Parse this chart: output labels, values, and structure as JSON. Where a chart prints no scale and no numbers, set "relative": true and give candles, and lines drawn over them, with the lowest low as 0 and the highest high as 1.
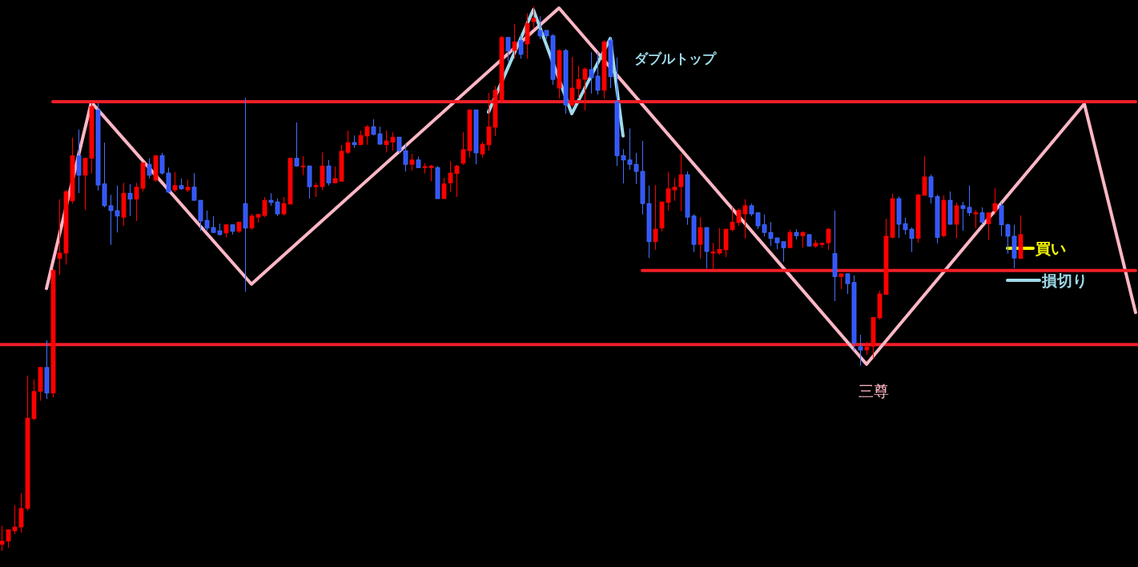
{
  "chart_data": {
    "type": "candlestick",
    "relative": true,
    "tick_labels": false,
    "categories": [
      null,
      null,
      null,
      null,
      null,
      null,
      null,
      null,
      null,
      null,
      null,
      null,
      null,
      null,
      null,
      null,
      null,
      null,
      null,
      null,
      null,
      null,
      null,
      null,
      null,
      null,
      null,
      null,
      null,
      null,
      null,
      null,
      null,
      null,
      null,
      null,
      null,
      null,
      null,
      null,
      null,
      null,
      null,
      null,
      null,
      null,
      null,
      null,
      null,
      null,
      null,
      null,
      null,
      null,
      null,
      null,
      null,
      null,
      null,
      null,
      null,
      null,
      null,
      null,
      null,
      null,
      null,
      null,
      null,
      null,
      null,
      null,
      null,
      null,
      null,
      null,
      null,
      null,
      null,
      null,
      null,
      null,
      null,
      null,
      null,
      null,
      null,
      null,
      null,
      null,
      null,
      null,
      null,
      null,
      null,
      null,
      null,
      null,
      null,
      null,
      null,
      null,
      null,
      null,
      null,
      null,
      null,
      null,
      null,
      null,
      null,
      null,
      null,
      null,
      null,
      null,
      null,
      null,
      null,
      null,
      null,
      null,
      null,
      null,
      null,
      null,
      null,
      null,
      null,
      null,
      null,
      null,
      null,
      null,
      null,
      null,
      null,
      null,
      null,
      null,
      null,
      null,
      null,
      null,
      null,
      null,
      null,
      null,
      null,
      null,
      null,
      null,
      null,
      null,
      null,
      null,
      null,
      null,
      null,
      null,
      null,
      null,
      null,
      null,
      null,
      null,
      null,
      null,
      null,
      null,
      null,
      null,
      null,
      null,
      null,
      null,
      null,
      null
    ],
    "ohlc": [
      [
        0.012,
        0.046,
        0,
        0.018
      ],
      [
        0.018,
        0.04,
        0.006,
        0.039
      ],
      [
        0.037,
        0.084,
        0.031,
        0.044
      ],
      [
        0.044,
        0.106,
        0.034,
        0.078
      ],
      [
        0.078,
        0.322,
        0.074,
        0.244
      ],
      [
        0.243,
        0.315,
        0.24,
        0.293
      ],
      [
        0.293,
        0.338,
        0.276,
        0.337
      ],
      [
        0.337,
        0.387,
        0.279,
        0.29
      ],
      [
        0.29,
        0.518,
        0.282,
        0.515
      ],
      [
        0.537,
        0.646,
        0.507,
        0.547
      ],
      [
        0.547,
        0.663,
        0.526,
        0.66
      ],
      [
        0.643,
        0.759,
        0.638,
        0.726
      ],
      [
        0.726,
        0.774,
        0.657,
        0.69
      ],
      [
        0.69,
        0.722,
        0.626,
        0.721
      ],
      [
        0.721,
        0.822,
        0.693,
        0.816
      ],
      [
        0.81,
        0.822,
        0.662,
        0.672
      ],
      [
        0.674,
        0.75,
        0.631,
        0.634
      ],
      [
        0.634,
        0.654,
        0.562,
        0.625
      ],
      [
        0.625,
        0.671,
        0.585,
        0.615
      ],
      [
        0.613,
        0.676,
        0.597,
        0.657
      ],
      [
        0.657,
        0.674,
        0.615,
        0.646
      ],
      [
        0.646,
        0.676,
        0.606,
        0.668
      ],
      [
        0.666,
        0.713,
        0.66,
        0.713
      ],
      [
        0.71,
        0.721,
        0.684,
        0.69
      ],
      [
        0.681,
        0.726,
        0.678,
        0.726
      ],
      [
        0.726,
        0.731,
        0.691,
        0.694
      ],
      [
        0.694,
        0.704,
        0.657,
        0.659
      ],
      [
        0.663,
        0.696,
        0.659,
        0.671
      ],
      [
        0.671,
        0.684,
        0.663,
        0.665
      ],
      [
        0.663,
        0.682,
        0.659,
        0.668
      ],
      [
        0.668,
        0.694,
        0.643,
        0.644
      ],
      [
        0.644,
        0.644,
        0.588,
        0.606
      ],
      [
        0.607,
        0.625,
        0.588,
        0.593
      ],
      [
        0.594,
        0.615,
        0.584,
        0.585
      ],
      [
        0.588,
        0.601,
        0.579,
        0.581
      ],
      [
        0.584,
        0.599,
        0.576,
        0.599
      ],
      [
        0.599,
        0.599,
        0.581,
        0.587
      ],
      [
        0.587,
        0.604,
        0.584,
        0.604
      ],
      [
        0.638,
        0.832,
        0.476,
        0.593
      ],
      [
        0.593,
        0.619,
        0.59,
        0.615
      ],
      [
        0.613,
        0.619,
        0.603,
        0.618
      ],
      [
        0.616,
        0.65,
        0.613,
        0.644
      ],
      [
        0.644,
        0.657,
        0.634,
        0.64
      ],
      [
        0.641,
        0.647,
        0.615,
        0.619
      ],
      [
        0.619,
        0.65,
        0.616,
        0.638
      ],
      [
        0.637,
        0.721,
        0.637,
        0.721
      ],
      [
        0.721,
        0.787,
        0.706,
        0.707
      ],
      [
        0.706,
        0.725,
        0.69,
        0.707
      ],
      [
        0.707,
        0.707,
        0.647,
        0.669
      ],
      [
        0.669,
        0.676,
        0.65,
        0.671
      ],
      [
        0.669,
        0.732,
        0.663,
        0.707
      ],
      [
        0.707,
        0.718,
        0.671,
        0.676
      ],
      [
        0.676,
        0.706,
        0.676,
        0.684
      ],
      [
        0.679,
        0.746,
        0.679,
        0.734
      ],
      [
        0.732,
        0.772,
        0.729,
        0.75
      ],
      [
        0.75,
        0.763,
        0.74,
        0.746
      ],
      [
        0.746,
        0.772,
        0.746,
        0.763
      ],
      [
        0.762,
        0.782,
        0.746,
        0.779
      ],
      [
        0.779,
        0.793,
        0.763,
        0.765
      ],
      [
        0.766,
        0.779,
        0.746,
        0.747
      ],
      [
        0.746,
        0.772,
        0.732,
        0.753
      ],
      [
        0.751,
        0.769,
        0.735,
        0.76
      ],
      [
        0.76,
        0.76,
        0.731,
        0.735
      ],
      [
        0.735,
        0.747,
        0.697,
        0.71
      ],
      [
        0.71,
        0.729,
        0.699,
        0.718
      ],
      [
        0.718,
        0.724,
        0.703,
        0.704
      ],
      [
        0.704,
        0.712,
        0.693,
        0.706
      ],
      [
        0.704,
        0.709,
        0.679,
        0.707
      ],
      [
        0.704,
        0.707,
        0.647,
        0.647
      ],
      [
        0.647,
        0.685,
        0.647,
        0.674
      ],
      [
        0.676,
        0.716,
        0.659,
        0.694
      ],
      [
        0.693,
        0.709,
        0.65,
        0.707
      ],
      [
        0.712,
        0.769,
        0.709,
        0.737
      ],
      [
        0.735,
        0.81,
        0.722,
        0.81
      ],
      [
        0.81,
        0.81,
        0.71,
        0.731
      ],
      [
        0.729,
        0.751,
        0.722,
        0.747
      ],
      [
        0.746,
        0.841,
        0.735,
        0.779
      ],
      [
        0.778,
        0.854,
        0.762,
        0.846
      ],
      [
        0.828,
        0.946,
        0.824,
        0.943
      ],
      [
        0.943,
        0.943,
        0.899,
        0.918
      ],
      [
        0.919,
        0.968,
        0.904,
        0.935
      ],
      [
        0.938,
        0.947,
        0.904,
        0.912
      ],
      [
        0.931,
        0.987,
        0.904,
        0.969
      ],
      [
        0.972,
        1,
        0.96,
        0.978
      ],
      [
        0.956,
        0.982,
        0.94,
        0.946
      ],
      [
        0.956,
        0.956,
        0.94,
        0.946
      ],
      [
        0.946,
        0.949,
        0.856,
        0.866
      ],
      [
        0.85,
        0.921,
        0.831,
        0.919
      ],
      [
        0.919,
        0.922,
        0.803,
        0.819
      ],
      [
        0.819,
        0.907,
        0.815,
        0.85
      ],
      [
        0.849,
        0.891,
        0.831,
        0.866
      ],
      [
        0.866,
        0.888,
        0.809,
        0.885
      ],
      [
        0.884,
        0.916,
        0.84,
        0.869
      ],
      [
        0.872,
        0.916,
        0.838,
        0.846
      ],
      [
        0.846,
        0.938,
        0.831,
        0.935
      ],
      [
        0.938,
        0.943,
        0.85,
        0.871
      ],
      [
        0.825,
        0.906,
        0.707,
        0.726
      ],
      [
        0.726,
        0.738,
        0.675,
        0.718
      ],
      [
        0.718,
        0.776,
        0.7,
        0.71
      ],
      [
        0.71,
        0.731,
        0.674,
        0.697
      ],
      [
        0.697,
        0.753,
        0.618,
        0.638
      ],
      [
        0.638,
        0.671,
        0.538,
        0.568
      ],
      [
        0.568,
        0.672,
        0.553,
        0.591
      ],
      [
        0.593,
        0.641,
        0.587,
        0.641
      ],
      [
        0.64,
        0.696,
        0.625,
        0.665
      ],
      [
        0.663,
        0.685,
        0.643,
        0.668
      ],
      [
        0.669,
        0.729,
        0.624,
        0.691
      ],
      [
        0.691,
        0.697,
        0.599,
        0.613
      ],
      [
        0.615,
        0.618,
        0.549,
        0.563
      ],
      [
        0.563,
        0.613,
        0.537,
        0.594
      ],
      [
        0.594,
        0.594,
        0.519,
        0.55
      ],
      [
        0.547,
        0.566,
        0.518,
        0.549
      ],
      [
        0.547,
        0.593,
        0.544,
        0.554
      ],
      [
        0.553,
        0.591,
        0.54,
        0.591
      ],
      [
        0.59,
        0.631,
        0.587,
        0.604
      ],
      [
        0.603,
        0.629,
        0.597,
        0.626
      ],
      [
        0.619,
        0.646,
        0.574,
        0.634
      ],
      [
        0.634,
        0.638,
        0.615,
        0.619
      ],
      [
        0.621,
        0.621,
        0.591,
        0.597
      ],
      [
        0.599,
        0.618,
        0.578,
        0.585
      ],
      [
        0.585,
        0.604,
        0.56,
        0.574
      ],
      [
        0.575,
        0.575,
        0.554,
        0.566
      ],
      [
        0.568,
        0.568,
        0.531,
        0.557
      ],
      [
        0.557,
        0.59,
        0.557,
        0.585
      ],
      [
        0.585,
        0.591,
        0.572,
        0.579
      ],
      [
        0.579,
        0.587,
        0.557,
        0.585
      ],
      [
        0.581,
        0.581,
        0.559,
        0.56
      ],
      [
        0.56,
        0.571,
        0.557,
        0.565
      ],
      [
        0.563,
        0.566,
        0.557,
        0.565
      ],
      [
        0.566,
        0.593,
        0.553,
        0.591
      ],
      [
        0.546,
        0.625,
        0.459,
        0.504
      ],
      [
        0.504,
        0.51,
        0.481,
        0.509
      ],
      [
        0.509,
        0.51,
        0.472,
        0.491
      ],
      [
        0.493,
        0.506,
        0.368,
        0.382
      ],
      [
        0.375,
        0.397,
        0.34,
        0.369
      ],
      [
        0.369,
        0.384,
        0.36,
        0.375
      ],
      [
        0.376,
        0.429,
        0.354,
        0.429
      ],
      [
        0.428,
        0.478,
        0.425,
        0.472
      ],
      [
        0.471,
        0.61,
        0.471,
        0.578
      ],
      [
        0.576,
        0.656,
        0.574,
        0.647
      ],
      [
        0.647,
        0.651,
        0.575,
        0.6
      ],
      [
        0.601,
        0.612,
        0.581,
        0.59
      ],
      [
        0.591,
        0.594,
        0.549,
        0.574
      ],
      [
        0.574,
        0.656,
        0.566,
        0.654
      ],
      [
        0.653,
        0.725,
        0.653,
        0.687
      ],
      [
        0.687,
        0.691,
        0.638,
        0.65
      ],
      [
        0.651,
        0.654,
        0.565,
        0.576
      ],
      [
        0.579,
        0.653,
        0.576,
        0.644
      ],
      [
        0.644,
        0.66,
        0.599,
        0.6
      ],
      [
        0.6,
        0.64,
        0.574,
        0.634
      ],
      [
        0.634,
        0.641,
        0.588,
        0.629
      ],
      [
        0.631,
        0.671,
        0.615,
        0.621
      ],
      [
        0.619,
        0.626,
        0.593,
        0.621
      ],
      [
        0.621,
        0.631,
        0.599,
        0.604
      ],
      [
        0.601,
        0.621,
        0.571,
        0.621
      ],
      [
        0.624,
        0.666,
        0.618,
        0.638
      ],
      [
        0.634,
        0.64,
        0.578,
        0.599
      ],
      [
        0.599,
        0.601,
        0.546,
        0.578
      ],
      [
        0.578,
        0.599,
        0.519,
        0.538
      ],
      [
        0.537,
        0.616,
        0.537,
        0.581
      ],
      null,
      null,
      null,
      null,
      null,
      null,
      null,
      null,
      null,
      null,
      null,
      null,
      null,
      null,
      null,
      null,
      null,
      null
    ],
    "colors": [
      "#ff0000",
      "#ff0000",
      "#ff0000",
      "#ff0000",
      "#ff0000",
      "#ff0000",
      "#ff0000",
      "#3355ff",
      "#ff0000",
      "#ff0000",
      "#ff0000",
      "#ff0000",
      "#3355ff",
      "#ff0000",
      "#ff0000",
      "#3355ff",
      "#3355ff",
      "#3355ff",
      "#3355ff",
      "#ff0000",
      "#3355ff",
      "#ff0000",
      "#ff0000",
      "#3355ff",
      "#ff0000",
      "#3355ff",
      "#3355ff",
      "#ff0000",
      "#3355ff",
      "#ff0000",
      "#3355ff",
      "#3355ff",
      "#3355ff",
      "#3355ff",
      "#3355ff",
      "#ff0000",
      "#3355ff",
      "#ff0000",
      "#3355ff",
      "#ff0000",
      "#ff0000",
      "#ff0000",
      "#3355ff",
      "#3355ff",
      "#ff0000",
      "#ff0000",
      "#3355ff",
      "#ff0000",
      "#3355ff",
      "#ff0000",
      "#ff0000",
      "#3355ff",
      "#ff0000",
      "#ff0000",
      "#ff0000",
      "#3355ff",
      "#ff0000",
      "#ff0000",
      "#3355ff",
      "#3355ff",
      "#ff0000",
      "#ff0000",
      "#3355ff",
      "#3355ff",
      "#ff0000",
      "#3355ff",
      "#ff0000",
      "#ff0000",
      "#3355ff",
      "#ff0000",
      "#ff0000",
      "#ff0000",
      "#ff0000",
      "#ff0000",
      "#3355ff",
      "#ff0000",
      "#ff0000",
      "#ff0000",
      "#ff0000",
      "#3355ff",
      "#ff0000",
      "#3355ff",
      "#ff0000",
      "#ff0000",
      "#3355ff",
      "#3355ff",
      "#3355ff",
      "#ff0000",
      "#3355ff",
      "#ff0000",
      "#ff0000",
      "#ff0000",
      "#3355ff",
      "#3355ff",
      "#ff0000",
      "#3355ff",
      "#3355ff",
      "#3355ff",
      "#3355ff",
      "#3355ff",
      "#3355ff",
      "#3355ff",
      "#ff0000",
      "#ff0000",
      "#ff0000",
      "#ff0000",
      "#ff0000",
      "#3355ff",
      "#3355ff",
      "#ff0000",
      "#3355ff",
      "#ff0000",
      "#ff0000",
      "#ff0000",
      "#ff0000",
      "#ff0000",
      "#ff0000",
      "#3355ff",
      "#3355ff",
      "#3355ff",
      "#3355ff",
      "#3355ff",
      "#3355ff",
      "#ff0000",
      "#3355ff",
      "#ff0000",
      "#3355ff",
      "#ff0000",
      "#ff0000",
      "#ff0000",
      "#3355ff",
      "#ff0000",
      "#3355ff",
      "#3355ff",
      "#3355ff",
      "#ff0000",
      "#ff0000",
      "#ff0000",
      "#ff0000",
      "#ff0000",
      "#3355ff",
      "#3355ff",
      "#3355ff",
      "#ff0000",
      "#ff0000",
      "#3355ff",
      "#3355ff",
      "#ff0000",
      "#3355ff",
      "#ff0000",
      "#3355ff",
      "#3355ff",
      "#ff0000",
      "#3355ff",
      "#ff0000",
      "#ff0000",
      "#3355ff",
      "#3355ff",
      "#3355ff",
      "#ff0000",
      null,
      null,
      null,
      null,
      null,
      null,
      null,
      null,
      null,
      null,
      null,
      null,
      null,
      null,
      null,
      null,
      null,
      null
    ],
    "series": [
      {
        "type": "line",
        "color": "#ffb7c5",
        "values": [
          null,
          null,
          null,
          null,
          null,
          null,
          null,
          0.482,
          null,
          null,
          null,
          null,
          null,
          null,
          0.824,
          null,
          null,
          null,
          null,
          null,
          null,
          null,
          null,
          null,
          null,
          null,
          null,
          null,
          null,
          null,
          null,
          null,
          null,
          null,
          null,
          null,
          null,
          null,
          null,
          0.49,
          null,
          null,
          null,
          null,
          null,
          null,
          null,
          null,
          null,
          null,
          null,
          null,
          null,
          null,
          null,
          null,
          null,
          null,
          null,
          null,
          null,
          null,
          null,
          null,
          null,
          null,
          null,
          null,
          null,
          null,
          null,
          null,
          null,
          null,
          null,
          null,
          null,
          null,
          null,
          null,
          null,
          null,
          null,
          null,
          null,
          null,
          null,
          0.997,
          null,
          null,
          null,
          null,
          null,
          null,
          null,
          null,
          null,
          null,
          null,
          null,
          null,
          null,
          null,
          null,
          null,
          null,
          null,
          null,
          null,
          null,
          null,
          null,
          null,
          null,
          null,
          null,
          null,
          null,
          null,
          null,
          null,
          null,
          null,
          null,
          null,
          null,
          null,
          null,
          null,
          null,
          null,
          null,
          null,
          null,
          null,
          0.343,
          null,
          null,
          null,
          null,
          null,
          null,
          null,
          null,
          null,
          null,
          null,
          null,
          null,
          null,
          null,
          null,
          null,
          null,
          null,
          null,
          null,
          null,
          null,
          null,
          null,
          null,
          null,
          null,
          null,
          null,
          null,
          null,
          null,
          0.821,
          null,
          null,
          null,
          null,
          null,
          null,
          null,
          0.438
        ]
      },
      {
        "type": "line",
        "color": "#9fdbea",
        "values": [
          null,
          null,
          null,
          null,
          null,
          null,
          null,
          null,
          null,
          null,
          null,
          null,
          null,
          null,
          null,
          null,
          null,
          null,
          null,
          null,
          null,
          null,
          null,
          null,
          null,
          null,
          null,
          null,
          null,
          null,
          null,
          null,
          null,
          null,
          null,
          null,
          null,
          null,
          null,
          null,
          null,
          null,
          null,
          null,
          null,
          null,
          null,
          null,
          null,
          null,
          null,
          null,
          null,
          null,
          null,
          null,
          null,
          null,
          null,
          null,
          null,
          null,
          null,
          null,
          null,
          null,
          null,
          null,
          null,
          null,
          null,
          null,
          null,
          null,
          null,
          null,
          0.806,
          null,
          null,
          null,
          null,
          null,
          null,
          0.994,
          null,
          null,
          null,
          null,
          null,
          0.803,
          null,
          null,
          null,
          null,
          null,
          0.941,
          null,
          0.762,
          null,
          null,
          null,
          null,
          null,
          null,
          null,
          null,
          null,
          null,
          null,
          null,
          null,
          null,
          null,
          null,
          null,
          null,
          null,
          null,
          null,
          null,
          null,
          null,
          null,
          null,
          null,
          null,
          null,
          null,
          null,
          null,
          null,
          null,
          null,
          null,
          null,
          null,
          null,
          null,
          null,
          null,
          null,
          null,
          null,
          null,
          null,
          null,
          null,
          null,
          null,
          null,
          null,
          null,
          null,
          null,
          null,
          null,
          null,
          null,
          null,
          null,
          null,
          null,
          null,
          null,
          null,
          null,
          null,
          null,
          null,
          null,
          null,
          null,
          null,
          null,
          null,
          null,
          null,
          null
        ]
      },
      {
        "type": "line",
        "color": "#f01e28",
        "values": [
          null,
          null,
          null,
          null,
          null,
          null,
          null,
          null,
          0.825,
          0.825,
          0.825,
          0.825,
          0.825,
          0.825,
          0.825,
          0.825,
          0.825,
          0.825,
          0.825,
          0.825,
          0.825,
          0.825,
          0.825,
          0.825,
          0.825,
          0.825,
          0.825,
          0.825,
          0.825,
          0.825,
          0.825,
          0.825,
          0.825,
          0.825,
          0.825,
          0.825,
          0.825,
          0.825,
          0.825,
          0.825,
          0.825,
          0.825,
          0.825,
          0.825,
          0.825,
          0.825,
          0.825,
          0.825,
          0.825,
          0.825,
          0.825,
          0.825,
          0.825,
          0.825,
          0.825,
          0.825,
          0.825,
          0.825,
          0.825,
          0.825,
          0.825,
          0.825,
          0.825,
          0.825,
          0.825,
          0.825,
          0.825,
          0.825,
          0.825,
          0.825,
          0.825,
          0.825,
          0.825,
          0.825,
          0.825,
          0.825,
          0.825,
          0.825,
          0.825,
          0.825,
          0.825,
          0.825,
          0.825,
          0.825,
          0.825,
          0.825,
          0.825,
          0.825,
          0.825,
          0.825,
          0.825,
          0.825,
          0.825,
          0.825,
          0.825,
          0.825,
          0.825,
          0.825,
          0.825,
          0.825,
          0.825,
          0.825,
          0.825,
          0.825,
          0.825,
          0.825,
          0.825,
          0.825,
          0.825,
          0.825,
          0.825,
          0.825,
          0.825,
          0.825,
          0.825,
          0.825,
          0.825,
          0.825,
          0.825,
          0.825,
          0.825,
          0.825,
          0.825,
          0.825,
          0.825,
          0.825,
          0.825,
          0.825,
          0.825,
          0.825,
          0.825,
          0.825,
          0.825,
          0.825,
          0.825,
          0.825,
          0.825,
          0.825,
          0.825,
          0.825,
          0.825,
          0.825,
          0.825,
          0.825,
          0.825,
          0.825,
          0.825,
          0.825,
          0.825,
          0.825,
          0.825,
          0.825,
          0.825,
          0.825,
          0.825,
          0.825,
          0.825,
          0.825,
          0.825,
          0.825,
          0.825,
          0.825,
          0.825,
          0.825,
          0.825,
          0.825,
          0.825,
          0.825,
          0.825,
          0.825,
          0.825,
          0.825,
          0.825,
          0.825,
          0.825,
          0.825,
          0.825,
          0.825
        ]
      },
      {
        "type": "line",
        "color": "#f01e28",
        "values": [
          null,
          null,
          null,
          null,
          null,
          null,
          null,
          null,
          null,
          null,
          null,
          null,
          null,
          null,
          null,
          null,
          null,
          null,
          null,
          null,
          null,
          null,
          null,
          null,
          null,
          null,
          null,
          null,
          null,
          null,
          null,
          null,
          null,
          null,
          null,
          null,
          null,
          null,
          null,
          null,
          null,
          null,
          null,
          null,
          null,
          null,
          null,
          null,
          null,
          null,
          null,
          null,
          null,
          null,
          null,
          null,
          null,
          null,
          null,
          null,
          null,
          null,
          null,
          null,
          null,
          null,
          null,
          null,
          null,
          null,
          null,
          null,
          null,
          null,
          null,
          null,
          null,
          null,
          null,
          null,
          null,
          null,
          null,
          null,
          null,
          null,
          null,
          null,
          null,
          null,
          null,
          null,
          null,
          null,
          null,
          null,
          null,
          null,
          null,
          null,
          0.515,
          0.515,
          0.515,
          0.515,
          0.515,
          0.515,
          0.515,
          0.515,
          0.515,
          0.515,
          0.515,
          0.515,
          0.515,
          0.515,
          0.515,
          0.515,
          0.515,
          0.515,
          0.515,
          0.515,
          0.515,
          0.515,
          0.515,
          0.515,
          0.515,
          0.515,
          0.515,
          0.515,
          0.515,
          0.515,
          0.515,
          0.515,
          0.515,
          0.515,
          0.515,
          0.515,
          0.515,
          0.515,
          0.515,
          0.515,
          0.515,
          0.515,
          0.515,
          0.515,
          0.515,
          0.515,
          0.515,
          0.515,
          0.515,
          0.515,
          0.515,
          0.515,
          0.515,
          0.515,
          0.515,
          0.515,
          0.515,
          0.515,
          0.515,
          0.515,
          0.515,
          0.515,
          0.515,
          0.515,
          0.515,
          0.515,
          0.515,
          0.515,
          0.515,
          0.515,
          0.515,
          0.515,
          0.515,
          0.515,
          0.515,
          0.515,
          0.515,
          0.515
        ]
      },
      {
        "type": "line",
        "name": "買い",
        "color": "#ffff00",
        "values": [
          null,
          null,
          null,
          null,
          null,
          null,
          null,
          null,
          null,
          null,
          null,
          null,
          null,
          null,
          null,
          null,
          null,
          null,
          null,
          null,
          null,
          null,
          null,
          null,
          null,
          null,
          null,
          null,
          null,
          null,
          null,
          null,
          null,
          null,
          null,
          null,
          null,
          null,
          null,
          null,
          null,
          null,
          null,
          null,
          null,
          null,
          null,
          null,
          null,
          null,
          null,
          null,
          null,
          null,
          null,
          null,
          null,
          null,
          null,
          null,
          null,
          null,
          null,
          null,
          null,
          null,
          null,
          null,
          null,
          null,
          null,
          null,
          null,
          null,
          null,
          null,
          null,
          null,
          null,
          null,
          null,
          null,
          null,
          null,
          null,
          null,
          null,
          null,
          null,
          null,
          null,
          null,
          null,
          null,
          null,
          null,
          null,
          null,
          null,
          null,
          null,
          null,
          null,
          null,
          null,
          null,
          null,
          null,
          null,
          null,
          null,
          null,
          null,
          null,
          null,
          null,
          null,
          null,
          null,
          null,
          null,
          null,
          null,
          null,
          null,
          null,
          null,
          null,
          null,
          null,
          null,
          null,
          null,
          null,
          null,
          null,
          null,
          null,
          null,
          null,
          null,
          null,
          null,
          null,
          null,
          null,
          null,
          null,
          null,
          null,
          null,
          null,
          null,
          null,
          null,
          null,
          null,
          0.556,
          0.556,
          0.556,
          0.556,
          0.556,
          null,
          null,
          null,
          null,
          null,
          null,
          null,
          null,
          null,
          null,
          null,
          null,
          null,
          null,
          null,
          null
        ]
      },
      {
        "type": "line",
        "name": "損切り",
        "color": "#9fdbea",
        "values": [
          null,
          null,
          null,
          null,
          null,
          null,
          null,
          null,
          null,
          null,
          null,
          null,
          null,
          null,
          null,
          null,
          null,
          null,
          null,
          null,
          null,
          null,
          null,
          null,
          null,
          null,
          null,
          null,
          null,
          null,
          null,
          null,
          null,
          null,
          null,
          null,
          null,
          null,
          null,
          null,
          null,
          null,
          null,
          null,
          null,
          null,
          null,
          null,
          null,
          null,
          null,
          null,
          null,
          null,
          null,
          null,
          null,
          null,
          null,
          null,
          null,
          null,
          null,
          null,
          null,
          null,
          null,
          null,
          null,
          null,
          null,
          null,
          null,
          null,
          null,
          null,
          null,
          null,
          null,
          null,
          null,
          null,
          null,
          null,
          null,
          null,
          null,
          null,
          null,
          null,
          null,
          null,
          null,
          null,
          null,
          null,
          null,
          null,
          null,
          null,
          null,
          null,
          null,
          null,
          null,
          null,
          null,
          null,
          null,
          null,
          null,
          null,
          null,
          null,
          null,
          null,
          null,
          null,
          null,
          null,
          null,
          null,
          null,
          null,
          null,
          null,
          null,
          null,
          null,
          null,
          null,
          null,
          null,
          null,
          null,
          null,
          null,
          null,
          null,
          null,
          null,
          null,
          null,
          null,
          null,
          null,
          null,
          null,
          null,
          null,
          null,
          null,
          null,
          null,
          null,
          null,
          null,
          0.497,
          0.497,
          0.497,
          0.497,
          0.497,
          0.497,
          null,
          null,
          null,
          null,
          null,
          null,
          null,
          null,
          null,
          null,
          null,
          null,
          null,
          null,
          null
        ]
      }
    ],
    "ref_lines": [
      {
        "axis": "y",
        "value": 0.379,
        "color": "#f01e28"
      }
    ],
    "annotations": [
      "ダブルトップ",
      "三尊"
    ]
  }
}
